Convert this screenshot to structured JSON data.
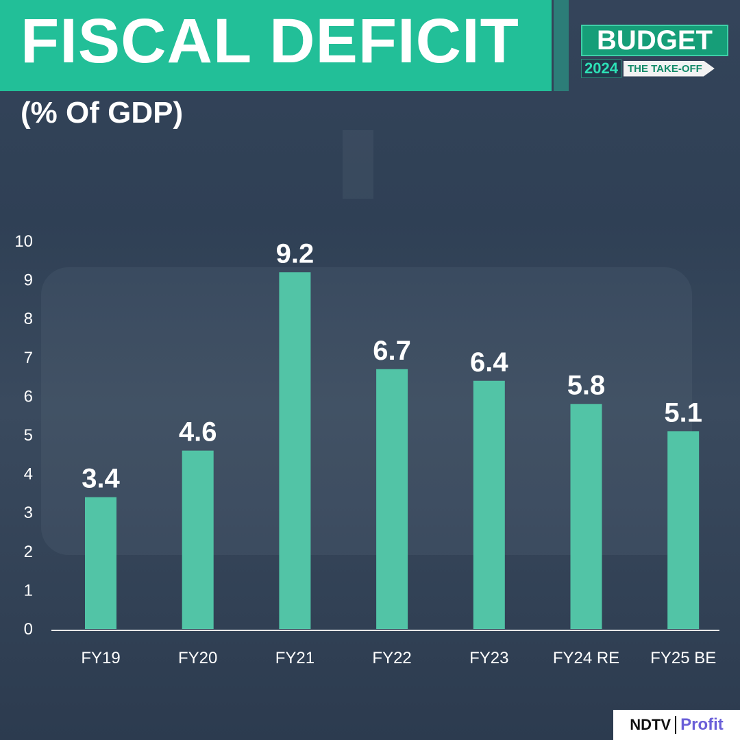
{
  "header": {
    "title": "FISCAL DEFICIT",
    "subtitle": "(% Of GDP)"
  },
  "logo": {
    "budget": "BUDGET",
    "year": "2024",
    "tagline": "THE TAKE-OFF"
  },
  "brand": {
    "ndtv": "NDTV",
    "profit": "Profit"
  },
  "colors": {
    "bar": "#52c4a6",
    "banner": "#22bf98",
    "background": "#2f4055"
  },
  "chart_data": {
    "type": "bar",
    "title": "FISCAL DEFICIT",
    "ylabel": "(% Of GDP)",
    "categories": [
      "FY19",
      "FY20",
      "FY21",
      "FY22",
      "FY23",
      "FY24 RE",
      "FY25 BE"
    ],
    "values": [
      3.4,
      4.6,
      9.2,
      6.7,
      6.4,
      5.8,
      5.1
    ],
    "data_labels": [
      "3.4",
      "4.6",
      "9.2",
      "6.7",
      "6.4",
      "5.8",
      "5.1"
    ],
    "yticks": [
      "0",
      "1",
      "2",
      "3",
      "4",
      "5",
      "6",
      "7",
      "8",
      "9",
      "10"
    ],
    "ylim": [
      0,
      10
    ],
    "grid": false
  }
}
